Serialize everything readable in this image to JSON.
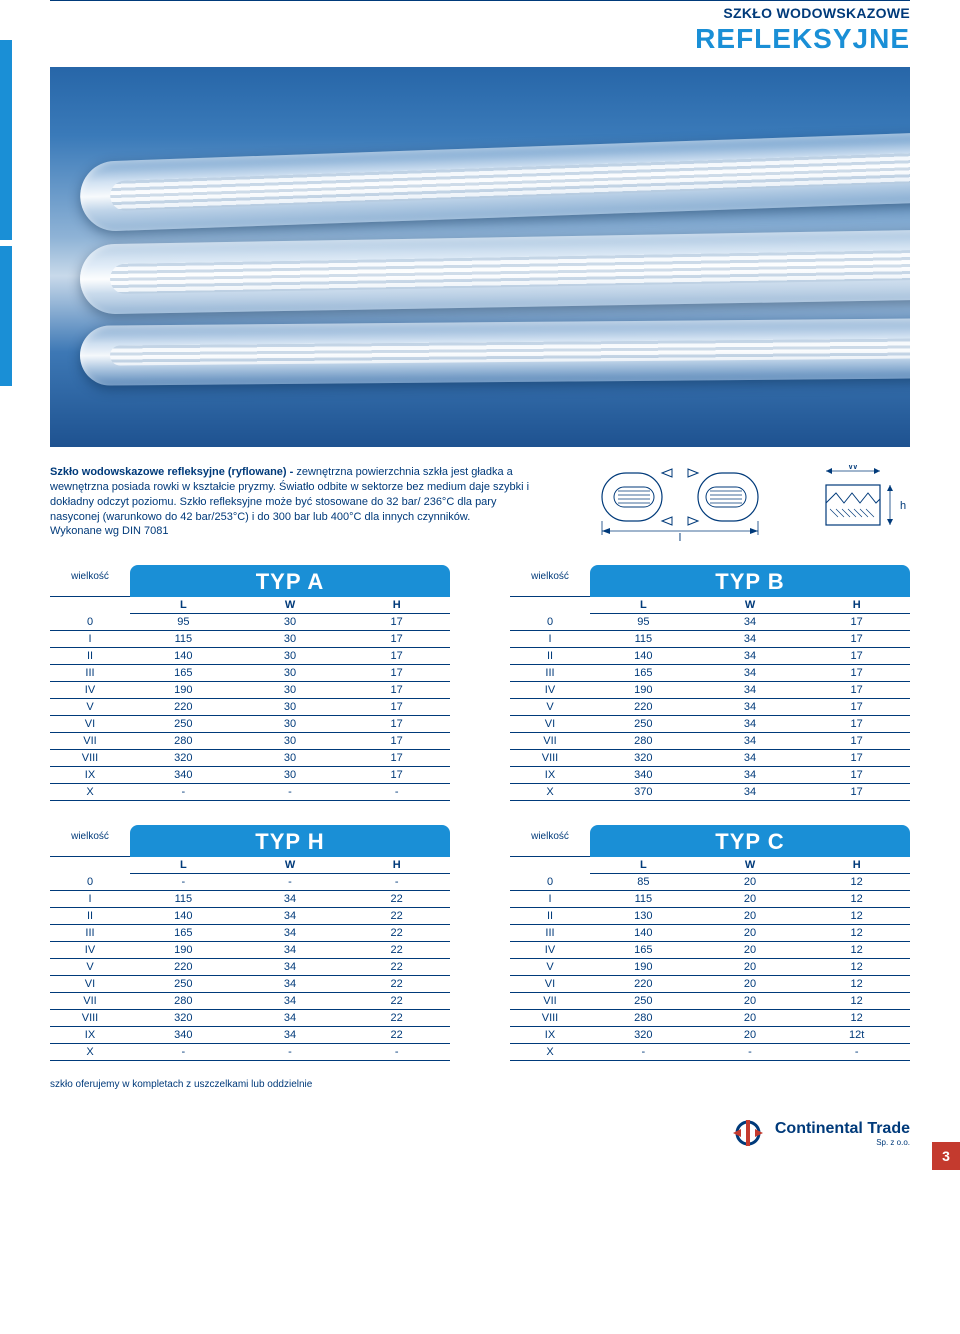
{
  "header": {
    "category": "SZKŁO WODOWSKAZOWE",
    "title": "REFLEKSYJNE"
  },
  "description": {
    "para1_bold": "Szkło wodowskazowe refleksyjne (ryflowane) -",
    "para1_rest": " zewnętrzna powierzchnia szkła jest gładka a wewnętrzna posiada rowki w kształcie pryzmy. Światło odbite w sektorze bez medium daje szybki i dokładny odczyt poziomu. Szkło refleksyjne może być stosowane do 32 bar/ 236°C dla pary nasyconej (warunkowo do 42 bar/253°C) i do 300 bar lub 400°C dla innych czynników.",
    "para2": "Wykonane wg DIN 7081"
  },
  "diagram": {
    "label_l": "l",
    "label_W": "W",
    "label_h": "h"
  },
  "tables": {
    "size_label": "wielkość",
    "cols": [
      "L",
      "W",
      "H"
    ],
    "A": {
      "title": "TYP A",
      "rows": [
        [
          "0",
          "95",
          "30",
          "17"
        ],
        [
          "I",
          "115",
          "30",
          "17"
        ],
        [
          "II",
          "140",
          "30",
          "17"
        ],
        [
          "III",
          "165",
          "30",
          "17"
        ],
        [
          "IV",
          "190",
          "30",
          "17"
        ],
        [
          "V",
          "220",
          "30",
          "17"
        ],
        [
          "VI",
          "250",
          "30",
          "17"
        ],
        [
          "VII",
          "280",
          "30",
          "17"
        ],
        [
          "VIII",
          "320",
          "30",
          "17"
        ],
        [
          "IX",
          "340",
          "30",
          "17"
        ],
        [
          "X",
          "-",
          "-",
          "-"
        ]
      ]
    },
    "B": {
      "title": "TYP B",
      "rows": [
        [
          "0",
          "95",
          "34",
          "17"
        ],
        [
          "I",
          "115",
          "34",
          "17"
        ],
        [
          "II",
          "140",
          "34",
          "17"
        ],
        [
          "III",
          "165",
          "34",
          "17"
        ],
        [
          "IV",
          "190",
          "34",
          "17"
        ],
        [
          "V",
          "220",
          "34",
          "17"
        ],
        [
          "VI",
          "250",
          "34",
          "17"
        ],
        [
          "VII",
          "280",
          "34",
          "17"
        ],
        [
          "VIII",
          "320",
          "34",
          "17"
        ],
        [
          "IX",
          "340",
          "34",
          "17"
        ],
        [
          "X",
          "370",
          "34",
          "17"
        ]
      ]
    },
    "H": {
      "title": "TYP H",
      "rows": [
        [
          "0",
          "-",
          "-",
          "-"
        ],
        [
          "I",
          "115",
          "34",
          "22"
        ],
        [
          "II",
          "140",
          "34",
          "22"
        ],
        [
          "III",
          "165",
          "34",
          "22"
        ],
        [
          "IV",
          "190",
          "34",
          "22"
        ],
        [
          "V",
          "220",
          "34",
          "22"
        ],
        [
          "VI",
          "250",
          "34",
          "22"
        ],
        [
          "VII",
          "280",
          "34",
          "22"
        ],
        [
          "VIII",
          "320",
          "34",
          "22"
        ],
        [
          "IX",
          "340",
          "34",
          "22"
        ],
        [
          "X",
          "-",
          "-",
          "-"
        ]
      ]
    },
    "C": {
      "title": "TYP C",
      "rows": [
        [
          "0",
          "85",
          "20",
          "12"
        ],
        [
          "I",
          "115",
          "20",
          "12"
        ],
        [
          "II",
          "130",
          "20",
          "12"
        ],
        [
          "III",
          "140",
          "20",
          "12"
        ],
        [
          "IV",
          "165",
          "20",
          "12"
        ],
        [
          "V",
          "190",
          "20",
          "12"
        ],
        [
          "VI",
          "220",
          "20",
          "12"
        ],
        [
          "VII",
          "250",
          "20",
          "12"
        ],
        [
          "VIII",
          "280",
          "20",
          "12"
        ],
        [
          "IX",
          "320",
          "20",
          "12t"
        ],
        [
          "X",
          "-",
          "-",
          "-"
        ]
      ]
    }
  },
  "footnote": "szkło oferujemy w kompletach z uszczelkami lub oddzielnie",
  "footer": {
    "brand": "Continental Trade",
    "sub": "Sp. z o.o."
  },
  "page_number": "3",
  "colors": {
    "primary": "#003a7a",
    "accent": "#1a8fd6",
    "page_badge": "#c43a2e"
  }
}
